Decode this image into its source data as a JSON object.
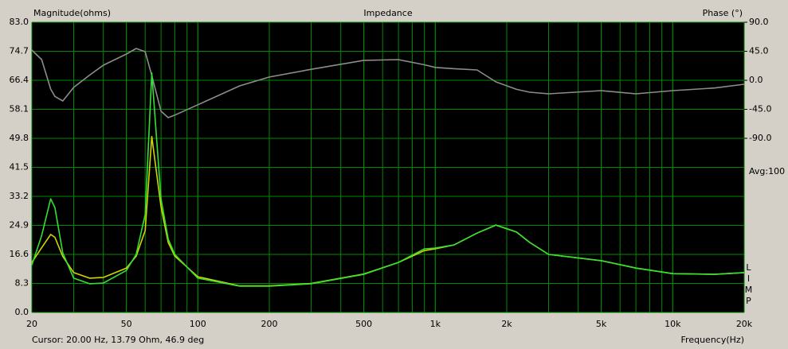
{
  "chart_data": {
    "type": "line",
    "title": "Impedance",
    "y_label": "Magnitude(ohms)",
    "y2_label": "Phase (°)",
    "x_label": "Frequency(Hz)",
    "side_note": "Avg:100",
    "side_label": "LIMP",
    "cursor": "Cursor: 20.00 Hz, 13.79 Ohm, 46.9 deg",
    "xscale": "log",
    "grid": true,
    "xlim": [
      20,
      20000
    ],
    "xticks": [
      20,
      50,
      100,
      200,
      500,
      {
        "value": 1000,
        "label": "1k"
      },
      {
        "value": 2000,
        "label": "2k"
      },
      {
        "value": 5000,
        "label": "5k"
      },
      {
        "value": 10000,
        "label": "10k"
      },
      {
        "value": 20000,
        "label": "20k"
      }
    ],
    "ylim": [
      0,
      83
    ],
    "yticks": [
      {
        "value": 0,
        "label": "0.0"
      },
      8.3,
      16.6,
      24.9,
      33.2,
      41.5,
      49.8,
      58.1,
      66.4,
      74.7,
      {
        "value": 83,
        "label": "83.0"
      }
    ],
    "y2lim": [
      -360,
      90
    ],
    "y2ticks": [
      {
        "value": 90,
        "label": "90.0"
      },
      {
        "value": 45,
        "label": "45.0"
      },
      {
        "value": 0,
        "label": "0.0"
      },
      {
        "value": -45,
        "label": "-45.0"
      },
      {
        "value": -90,
        "label": "-90.0"
      }
    ],
    "x": [
      20,
      22,
      24,
      25,
      27,
      30,
      35,
      40,
      50,
      55,
      60,
      64,
      70,
      75,
      80,
      100,
      150,
      200,
      300,
      500,
      700,
      900,
      1000,
      1200,
      1500,
      1800,
      2200,
      2500,
      3000,
      5000,
      7000,
      10000,
      15000,
      20000
    ],
    "series": [
      {
        "color": "#33e033",
        "values": [
          13.6,
          22,
          32.5,
          30,
          17,
          9.8,
          8.2,
          8.4,
          12,
          16.6,
          28,
          68.5,
          32.5,
          21,
          16.6,
          9.8,
          7.5,
          7.5,
          8.2,
          10.9,
          14.3,
          18.2,
          18.4,
          19.3,
          22.7,
          25,
          23,
          20,
          16.6,
          14.8,
          12.7,
          11.1,
          10.9,
          11.4
        ]
      },
      {
        "color": "#d4d400",
        "values": [
          14.3,
          18.5,
          22.3,
          21.5,
          16,
          11.4,
          9.8,
          10,
          12.7,
          16.1,
          23.4,
          50.3,
          30.2,
          20,
          16.1,
          10.2,
          7.6,
          7.6,
          8.3,
          11,
          14.3,
          17.7,
          18.2,
          19.3,
          22.7,
          25,
          23,
          20,
          16.6,
          14.8,
          12.7,
          11.1,
          10.9,
          11.4
        ]
      },
      {
        "color": "#8c8c8c",
        "axis": "y2",
        "values": [
          46.8,
          32,
          -13.6,
          -25,
          -32,
          -11,
          8,
          23.4,
          40.7,
          49.3,
          44.4,
          7.4,
          -48,
          -58,
          -54,
          -38,
          -8.6,
          5,
          17,
          31,
          32,
          24,
          20,
          18,
          16,
          -2.5,
          -14,
          -18.5,
          -21,
          -16,
          -21,
          -16,
          -12,
          -6.2
        ]
      }
    ]
  }
}
